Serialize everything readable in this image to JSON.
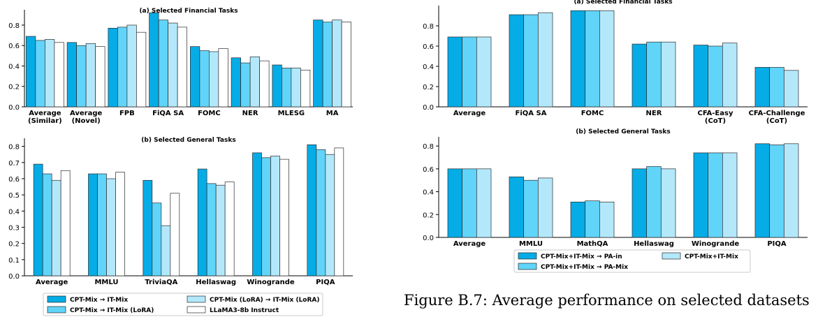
{
  "colors": {
    "s1": "#05ace6",
    "s2": "#61d4f9",
    "s3": "#b3e8fb",
    "s4": "#ffffff",
    "edge": "#2b2b2b"
  },
  "caption": "Figure B.7: Average performance on selected datasets",
  "legends": {
    "left": [
      "CPT-Mix → IT-Mix",
      "CPT-Mix → IT-Mix (LoRA)",
      "CPT-Mix (LoRA) → IT-Mix (LoRA)",
      "LLaMA3-8b Instruct"
    ],
    "right": [
      "CPT-Mix+IT-Mix → PA-in",
      "CPT-Mix+IT-Mix → PA-Mix",
      "CPT-Mix+IT-Mix"
    ]
  },
  "chart_data": [
    {
      "type": "bar",
      "title": "(a) Selected Financial Tasks",
      "categories": [
        "Average (Similar)",
        "Average (Novel)",
        "FPB",
        "FiQA SA",
        "FOMC",
        "NER",
        "MLESG",
        "MA"
      ],
      "ylim": [
        0,
        0.95
      ],
      "yticks": [
        "0.0",
        "0.2",
        "0.4",
        "0.6",
        "0.8"
      ],
      "series": [
        {
          "name": "CPT-Mix → IT-Mix",
          "values": [
            0.69,
            0.63,
            0.77,
            0.92,
            0.59,
            0.48,
            0.41,
            0.85
          ]
        },
        {
          "name": "CPT-Mix → IT-Mix (LoRA)",
          "values": [
            0.65,
            0.6,
            0.78,
            0.85,
            0.55,
            0.43,
            0.38,
            0.83
          ]
        },
        {
          "name": "CPT-Mix (LoRA) → IT-Mix (LoRA)",
          "values": [
            0.66,
            0.62,
            0.8,
            0.82,
            0.54,
            0.49,
            0.38,
            0.85
          ]
        },
        {
          "name": "LLaMA3-8b Instruct",
          "values": [
            0.63,
            0.59,
            0.73,
            0.78,
            0.57,
            0.45,
            0.36,
            0.83
          ]
        }
      ]
    },
    {
      "type": "bar",
      "title": "(b) Selected General Tasks",
      "categories": [
        "Average",
        "MMLU",
        "TriviaQA",
        "Hellaswag",
        "Winogrande",
        "PIQA"
      ],
      "ylim": [
        0,
        0.85
      ],
      "yticks": [
        "0.0",
        "0.1",
        "0.2",
        "0.3",
        "0.4",
        "0.5",
        "0.6",
        "0.7",
        "0.8"
      ],
      "series": [
        {
          "name": "CPT-Mix → IT-Mix",
          "values": [
            0.69,
            0.63,
            0.59,
            0.66,
            0.76,
            0.81
          ]
        },
        {
          "name": "CPT-Mix → IT-Mix (LoRA)",
          "values": [
            0.63,
            0.63,
            0.45,
            0.57,
            0.73,
            0.78
          ]
        },
        {
          "name": "CPT-Mix (LoRA) → IT-Mix (LoRA)",
          "values": [
            0.59,
            0.6,
            0.31,
            0.56,
            0.74,
            0.75
          ]
        },
        {
          "name": "LLaMA3-8b Instruct",
          "values": [
            0.65,
            0.64,
            0.51,
            0.58,
            0.72,
            0.79
          ]
        }
      ]
    },
    {
      "type": "bar",
      "title": "(a) Selected Financial Tasks",
      "categories": [
        "Average",
        "FiQA SA",
        "FOMC",
        "NER",
        "CFA-Easy (CoT)",
        "CFA-Challenge (CoT)"
      ],
      "ylim": [
        0,
        1.0
      ],
      "yticks": [
        "0.0",
        "0.2",
        "0.4",
        "0.6",
        "0.8"
      ],
      "series": [
        {
          "name": "CPT-Mix+IT-Mix → PA-in",
          "values": [
            0.69,
            0.91,
            0.95,
            0.62,
            0.61,
            0.39
          ]
        },
        {
          "name": "CPT-Mix+IT-Mix → PA-Mix",
          "values": [
            0.69,
            0.91,
            0.95,
            0.64,
            0.6,
            0.39
          ]
        },
        {
          "name": "CPT-Mix+IT-Mix",
          "values": [
            0.69,
            0.93,
            0.95,
            0.64,
            0.63,
            0.36
          ]
        }
      ]
    },
    {
      "type": "bar",
      "title": "(b) Selected General Tasks",
      "categories": [
        "Average",
        "MMLU",
        "MathQA",
        "Hellaswag",
        "Winogrande",
        "PIQA"
      ],
      "ylim": [
        0,
        0.88
      ],
      "yticks": [
        "0.0",
        "0.2",
        "0.4",
        "0.6",
        "0.8"
      ],
      "series": [
        {
          "name": "CPT-Mix+IT-Mix → PA-in",
          "values": [
            0.6,
            0.53,
            0.31,
            0.6,
            0.74,
            0.82
          ]
        },
        {
          "name": "CPT-Mix+IT-Mix → PA-Mix",
          "values": [
            0.6,
            0.5,
            0.32,
            0.62,
            0.74,
            0.81
          ]
        },
        {
          "name": "CPT-Mix+IT-Mix",
          "values": [
            0.6,
            0.52,
            0.31,
            0.6,
            0.74,
            0.82
          ]
        }
      ]
    }
  ]
}
